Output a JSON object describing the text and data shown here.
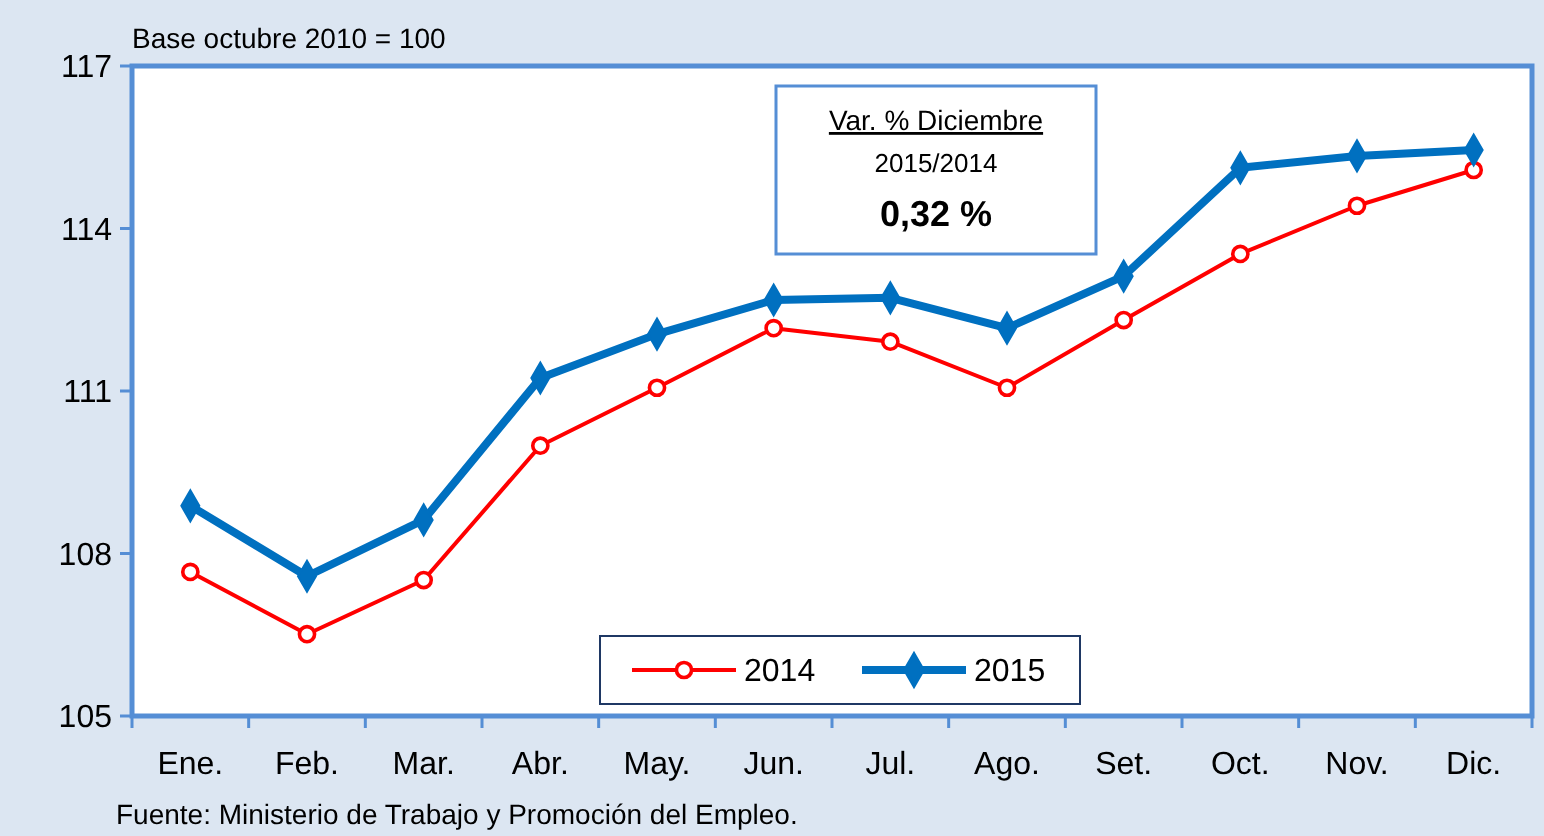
{
  "chart_data": {
    "type": "line",
    "subtitle": "Base octubre  2010  =  100",
    "categories": [
      "Ene.",
      "Feb.",
      "Mar.",
      "Abr.",
      "May.",
      "Jun.",
      "Jul.",
      "Ago.",
      "Set.",
      "Oct.",
      "Nov.",
      "Dic."
    ],
    "series": [
      {
        "name": "2014",
        "color": "#ff0000",
        "marker": "circle",
        "values": [
          107.66,
          106.51,
          107.51,
          109.99,
          111.06,
          112.16,
          111.91,
          111.06,
          112.31,
          113.53,
          114.42,
          115.08
        ]
      },
      {
        "name": "2015",
        "color": "#0070c0",
        "marker": "diamond",
        "values": [
          108.88,
          107.58,
          108.62,
          111.24,
          112.05,
          112.68,
          112.72,
          112.16,
          113.12,
          115.12,
          115.34,
          115.45
        ]
      }
    ],
    "ylim": [
      105,
      117
    ],
    "yticks": [
      105,
      108,
      111,
      114,
      117
    ],
    "legend": "bottom",
    "annotations": [
      "Var. % Diciembre",
      "2015/2014",
      "0,32 %",
      "Fuente: Ministerio  de Trabajo y Promoción del Empleo."
    ]
  }
}
